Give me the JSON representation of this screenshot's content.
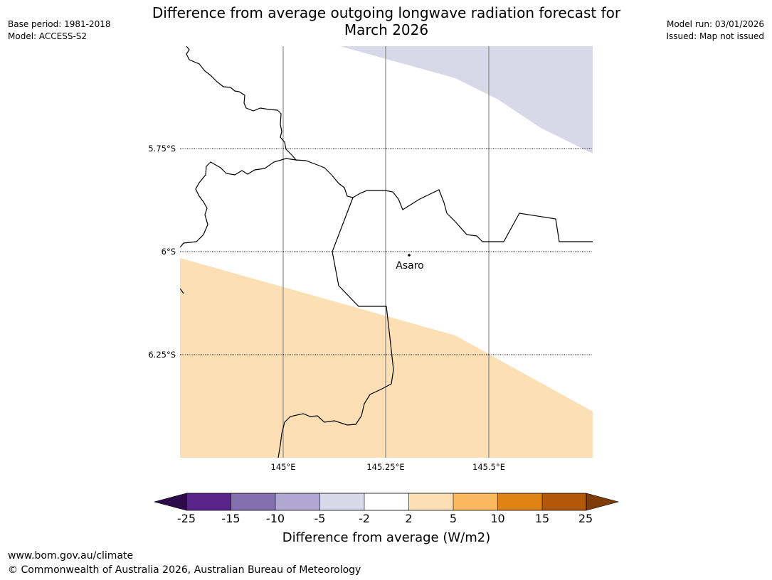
{
  "header": {
    "base_period": "Base period: 1981-2018",
    "model": "Model: ACCESS-S2",
    "model_run": "Model run: 03/01/2026",
    "issued": "Issued: Map not issued",
    "title_line1": "Difference from average outgoing longwave radiation forecast for",
    "title_line2": "March 2026"
  },
  "map": {
    "latitude_labels": [
      "5.75°S",
      "6°S",
      "6.25°S"
    ],
    "longitude_labels": [
      "145°E",
      "145.25°E",
      "145.5°E"
    ],
    "place": {
      "name": "Asaro"
    },
    "region_colors": {
      "negative_small": "#d8d8e9",
      "positive_small": "#fcdfb4"
    }
  },
  "colorbar": {
    "title": "Difference from average (W/m2)",
    "tick_labels": [
      "-25",
      "-15",
      "-10",
      "-5",
      "-2",
      "2",
      "5",
      "10",
      "15",
      "25"
    ],
    "colors": [
      "#2d0a4a",
      "#58238a",
      "#8370af",
      "#b1a8d1",
      "#d8d8e9",
      "#ffffff",
      "#fcdfb4",
      "#fbb95f",
      "#e08315",
      "#b35806",
      "#7f3b08"
    ]
  },
  "footer": {
    "url": "www.bom.gov.au/climate",
    "copyright": "© Commonwealth of Australia 2026, Australian Bureau of Meteorology"
  }
}
